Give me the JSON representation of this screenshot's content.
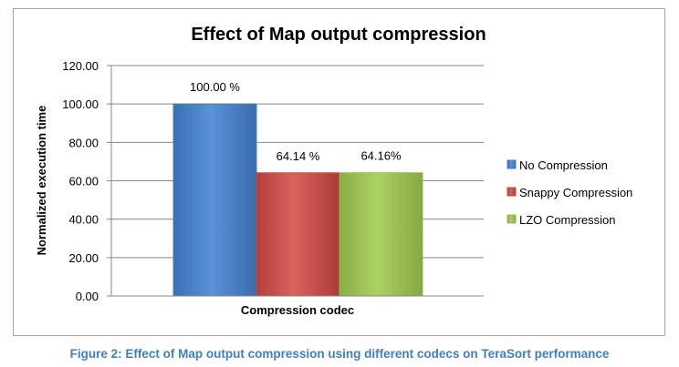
{
  "chart_data": {
    "type": "bar",
    "title": "Effect of Map output compression",
    "xlabel": "Compression codec",
    "ylabel": "Normalized execution time",
    "ylim": [
      0,
      120
    ],
    "yticks": [
      "0.00",
      "20.00",
      "40.00",
      "60.00",
      "80.00",
      "100.00",
      "120.00"
    ],
    "grid": true,
    "legend_position": "right",
    "series": [
      {
        "name": "No Compression",
        "value": 100.0,
        "label": "100.00 %",
        "color": "#4a7ebb"
      },
      {
        "name": "Snappy Compression",
        "value": 64.14,
        "label": "64.14 %",
        "color": "#be4b48"
      },
      {
        "name": "LZO Compression",
        "value": 64.16,
        "label": "64.16%",
        "color": "#98b954"
      }
    ]
  },
  "caption": "Figure 2: Effect of Map output compression using different codecs on TeraSort performance"
}
